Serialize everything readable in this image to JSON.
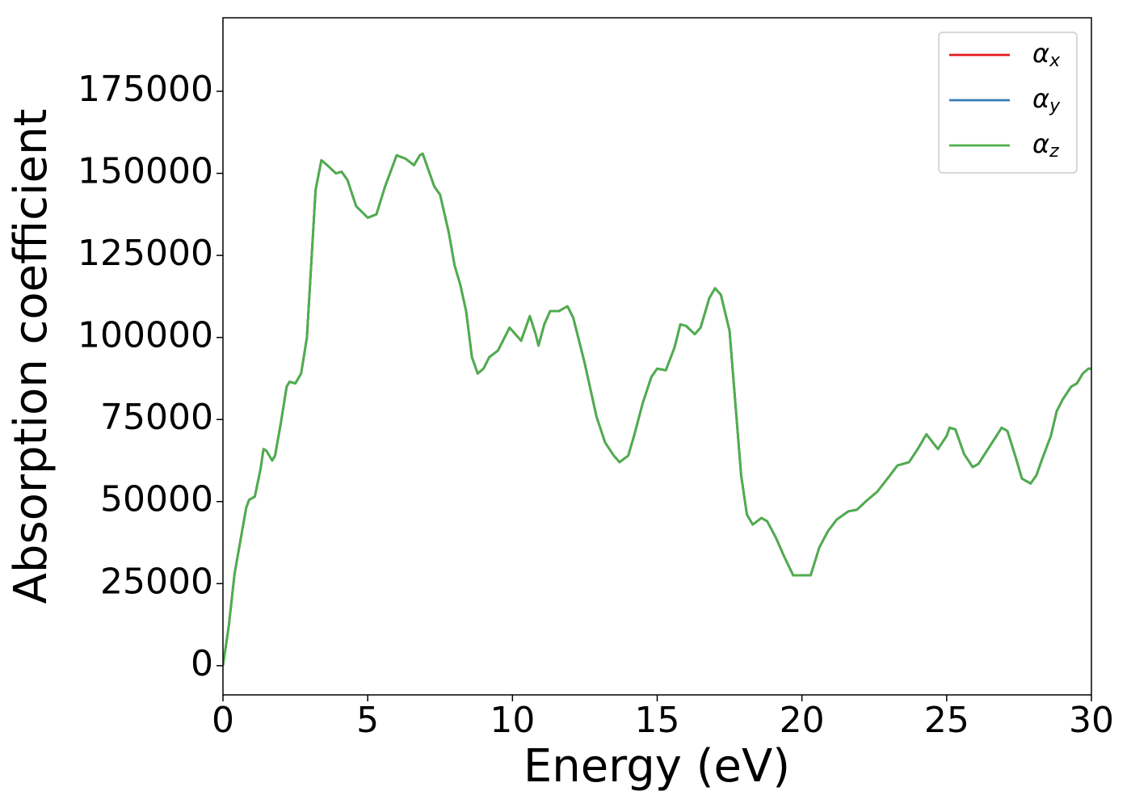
{
  "chart_data": {
    "type": "line",
    "xlabel": "Energy (eV)",
    "ylabel": "Absorption coefficient",
    "x": [
      0,
      0.2,
      0.4,
      0.6,
      0.8,
      0.9,
      1.1,
      1.3,
      1.4,
      1.5,
      1.7,
      1.8,
      2.0,
      2.2,
      2.3,
      2.5,
      2.7,
      2.9,
      3.0,
      3.2,
      3.4,
      3.6,
      3.9,
      4.1,
      4.3,
      4.6,
      5.0,
      5.3,
      5.6,
      6.0,
      6.3,
      6.6,
      6.8,
      6.9,
      7.1,
      7.3,
      7.5,
      7.8,
      8.0,
      8.2,
      8.4,
      8.6,
      8.8,
      9.0,
      9.2,
      9.5,
      9.9,
      10.1,
      10.3,
      10.6,
      10.8,
      10.9,
      11.1,
      11.3,
      11.6,
      11.8,
      11.9,
      12.1,
      12.5,
      12.9,
      13.2,
      13.5,
      13.7,
      14.0,
      14.2,
      14.5,
      14.8,
      15.0,
      15.3,
      15.6,
      15.8,
      16.0,
      16.3,
      16.5,
      16.8,
      17.0,
      17.2,
      17.5,
      17.7,
      17.9,
      18.1,
      18.3,
      18.6,
      18.8,
      19.1,
      19.4,
      19.7,
      20.0,
      20.3,
      20.6,
      20.9,
      21.2,
      21.6,
      21.9,
      22.2,
      22.6,
      23.0,
      23.3,
      23.7,
      24.0,
      24.3,
      24.7,
      25.0,
      25.1,
      25.3,
      25.6,
      25.9,
      26.1,
      26.5,
      26.9,
      27.1,
      27.4,
      27.6,
      27.9,
      28.1,
      28.3,
      28.6,
      28.8,
      29.0,
      29.3,
      29.5,
      29.7,
      29.9,
      30.0
    ],
    "series": [
      {
        "name": "αx",
        "color": "#e41a1c",
        "values": [
          0,
          12000,
          28000,
          38000,
          48000,
          50500,
          51500,
          60000,
          66000,
          65500,
          62500,
          64000,
          74000,
          85000,
          86500,
          86000,
          89000,
          100000,
          115000,
          145000,
          154000,
          152500,
          150000,
          150500,
          148000,
          140000,
          136500,
          137500,
          146000,
          155500,
          154500,
          152500,
          155500,
          156000,
          151000,
          146000,
          143500,
          132000,
          122000,
          116000,
          108000,
          94000,
          89000,
          90500,
          94000,
          96000,
          103000,
          101000,
          99000,
          106500,
          101000,
          97500,
          104000,
          108000,
          108000,
          109000,
          109500,
          106000,
          92000,
          76000,
          68000,
          64000,
          62000,
          64000,
          70000,
          80000,
          88000,
          90500,
          90000,
          97000,
          104000,
          103500,
          101000,
          103000,
          112000,
          115000,
          113000,
          102000,
          80000,
          58000,
          46000,
          43000,
          45000,
          44000,
          39000,
          33000,
          27500,
          27500,
          27500,
          36000,
          41000,
          44500,
          47000,
          47500,
          50000,
          53000,
          57500,
          61000,
          62000,
          66000,
          70500,
          66000,
          70000,
          72500,
          72000,
          64500,
          60500,
          61500,
          67000,
          72500,
          71500,
          63000,
          57000,
          55500,
          58000,
          63000,
          70000,
          77500,
          81000,
          85000,
          86000,
          89000,
          90500,
          90500
        ]
      },
      {
        "name": "αy",
        "color": "#377eb8",
        "values": [
          0,
          12000,
          28000,
          38000,
          48000,
          50500,
          51500,
          60000,
          66000,
          65500,
          62500,
          64000,
          74000,
          85000,
          86500,
          86000,
          89000,
          100000,
          115000,
          145000,
          154000,
          152500,
          150000,
          150500,
          148000,
          140000,
          136500,
          137500,
          146000,
          155500,
          154500,
          152500,
          155500,
          156000,
          151000,
          146000,
          143500,
          132000,
          122000,
          116000,
          108000,
          94000,
          89000,
          90500,
          94000,
          96000,
          103000,
          101000,
          99000,
          106500,
          101000,
          97500,
          104000,
          108000,
          108000,
          109000,
          109500,
          106000,
          92000,
          76000,
          68000,
          64000,
          62000,
          64000,
          70000,
          80000,
          88000,
          90500,
          90000,
          97000,
          104000,
          103500,
          101000,
          103000,
          112000,
          115000,
          113000,
          102000,
          80000,
          58000,
          46000,
          43000,
          45000,
          44000,
          39000,
          33000,
          27500,
          27500,
          27500,
          36000,
          41000,
          44500,
          47000,
          47500,
          50000,
          53000,
          57500,
          61000,
          62000,
          66000,
          70500,
          66000,
          70000,
          72500,
          72000,
          64500,
          60500,
          61500,
          67000,
          72500,
          71500,
          63000,
          57000,
          55500,
          58000,
          63000,
          70000,
          77500,
          81000,
          85000,
          86000,
          89000,
          90500,
          90500
        ]
      },
      {
        "name": "αz",
        "color": "#4daf4a",
        "values": [
          0,
          12000,
          28000,
          38000,
          48000,
          50500,
          51500,
          60000,
          66000,
          65500,
          62500,
          64000,
          74000,
          85000,
          86500,
          86000,
          89000,
          100000,
          115000,
          145000,
          154000,
          152500,
          150000,
          150500,
          148000,
          140000,
          136500,
          137500,
          146000,
          155500,
          154500,
          152500,
          155500,
          156000,
          151000,
          146000,
          143500,
          132000,
          122000,
          116000,
          108000,
          94000,
          89000,
          90500,
          94000,
          96000,
          103000,
          101000,
          99000,
          106500,
          101000,
          97500,
          104000,
          108000,
          108000,
          109000,
          109500,
          106000,
          92000,
          76000,
          68000,
          64000,
          62000,
          64000,
          70000,
          80000,
          88000,
          90500,
          90000,
          97000,
          104000,
          103500,
          101000,
          103000,
          112000,
          115000,
          113000,
          102000,
          80000,
          58000,
          46000,
          43000,
          45000,
          44000,
          39000,
          33000,
          27500,
          27500,
          27500,
          36000,
          41000,
          44500,
          47000,
          47500,
          50000,
          53000,
          57500,
          61000,
          62000,
          66000,
          70500,
          66000,
          70000,
          72500,
          72000,
          64500,
          60500,
          61500,
          67000,
          72500,
          71500,
          63000,
          57000,
          55500,
          58000,
          63000,
          70000,
          77500,
          81000,
          85000,
          86000,
          89000,
          90500,
          90500
        ]
      }
    ],
    "xlim": [
      0,
      30
    ],
    "xticks": [
      0,
      5,
      10,
      15,
      20,
      25,
      30
    ],
    "ylim": [
      -8900,
      197400
    ],
    "yticks": [
      0,
      25000,
      50000,
      75000,
      100000,
      125000,
      150000,
      175000
    ],
    "grid": false,
    "legend": "upper right"
  }
}
